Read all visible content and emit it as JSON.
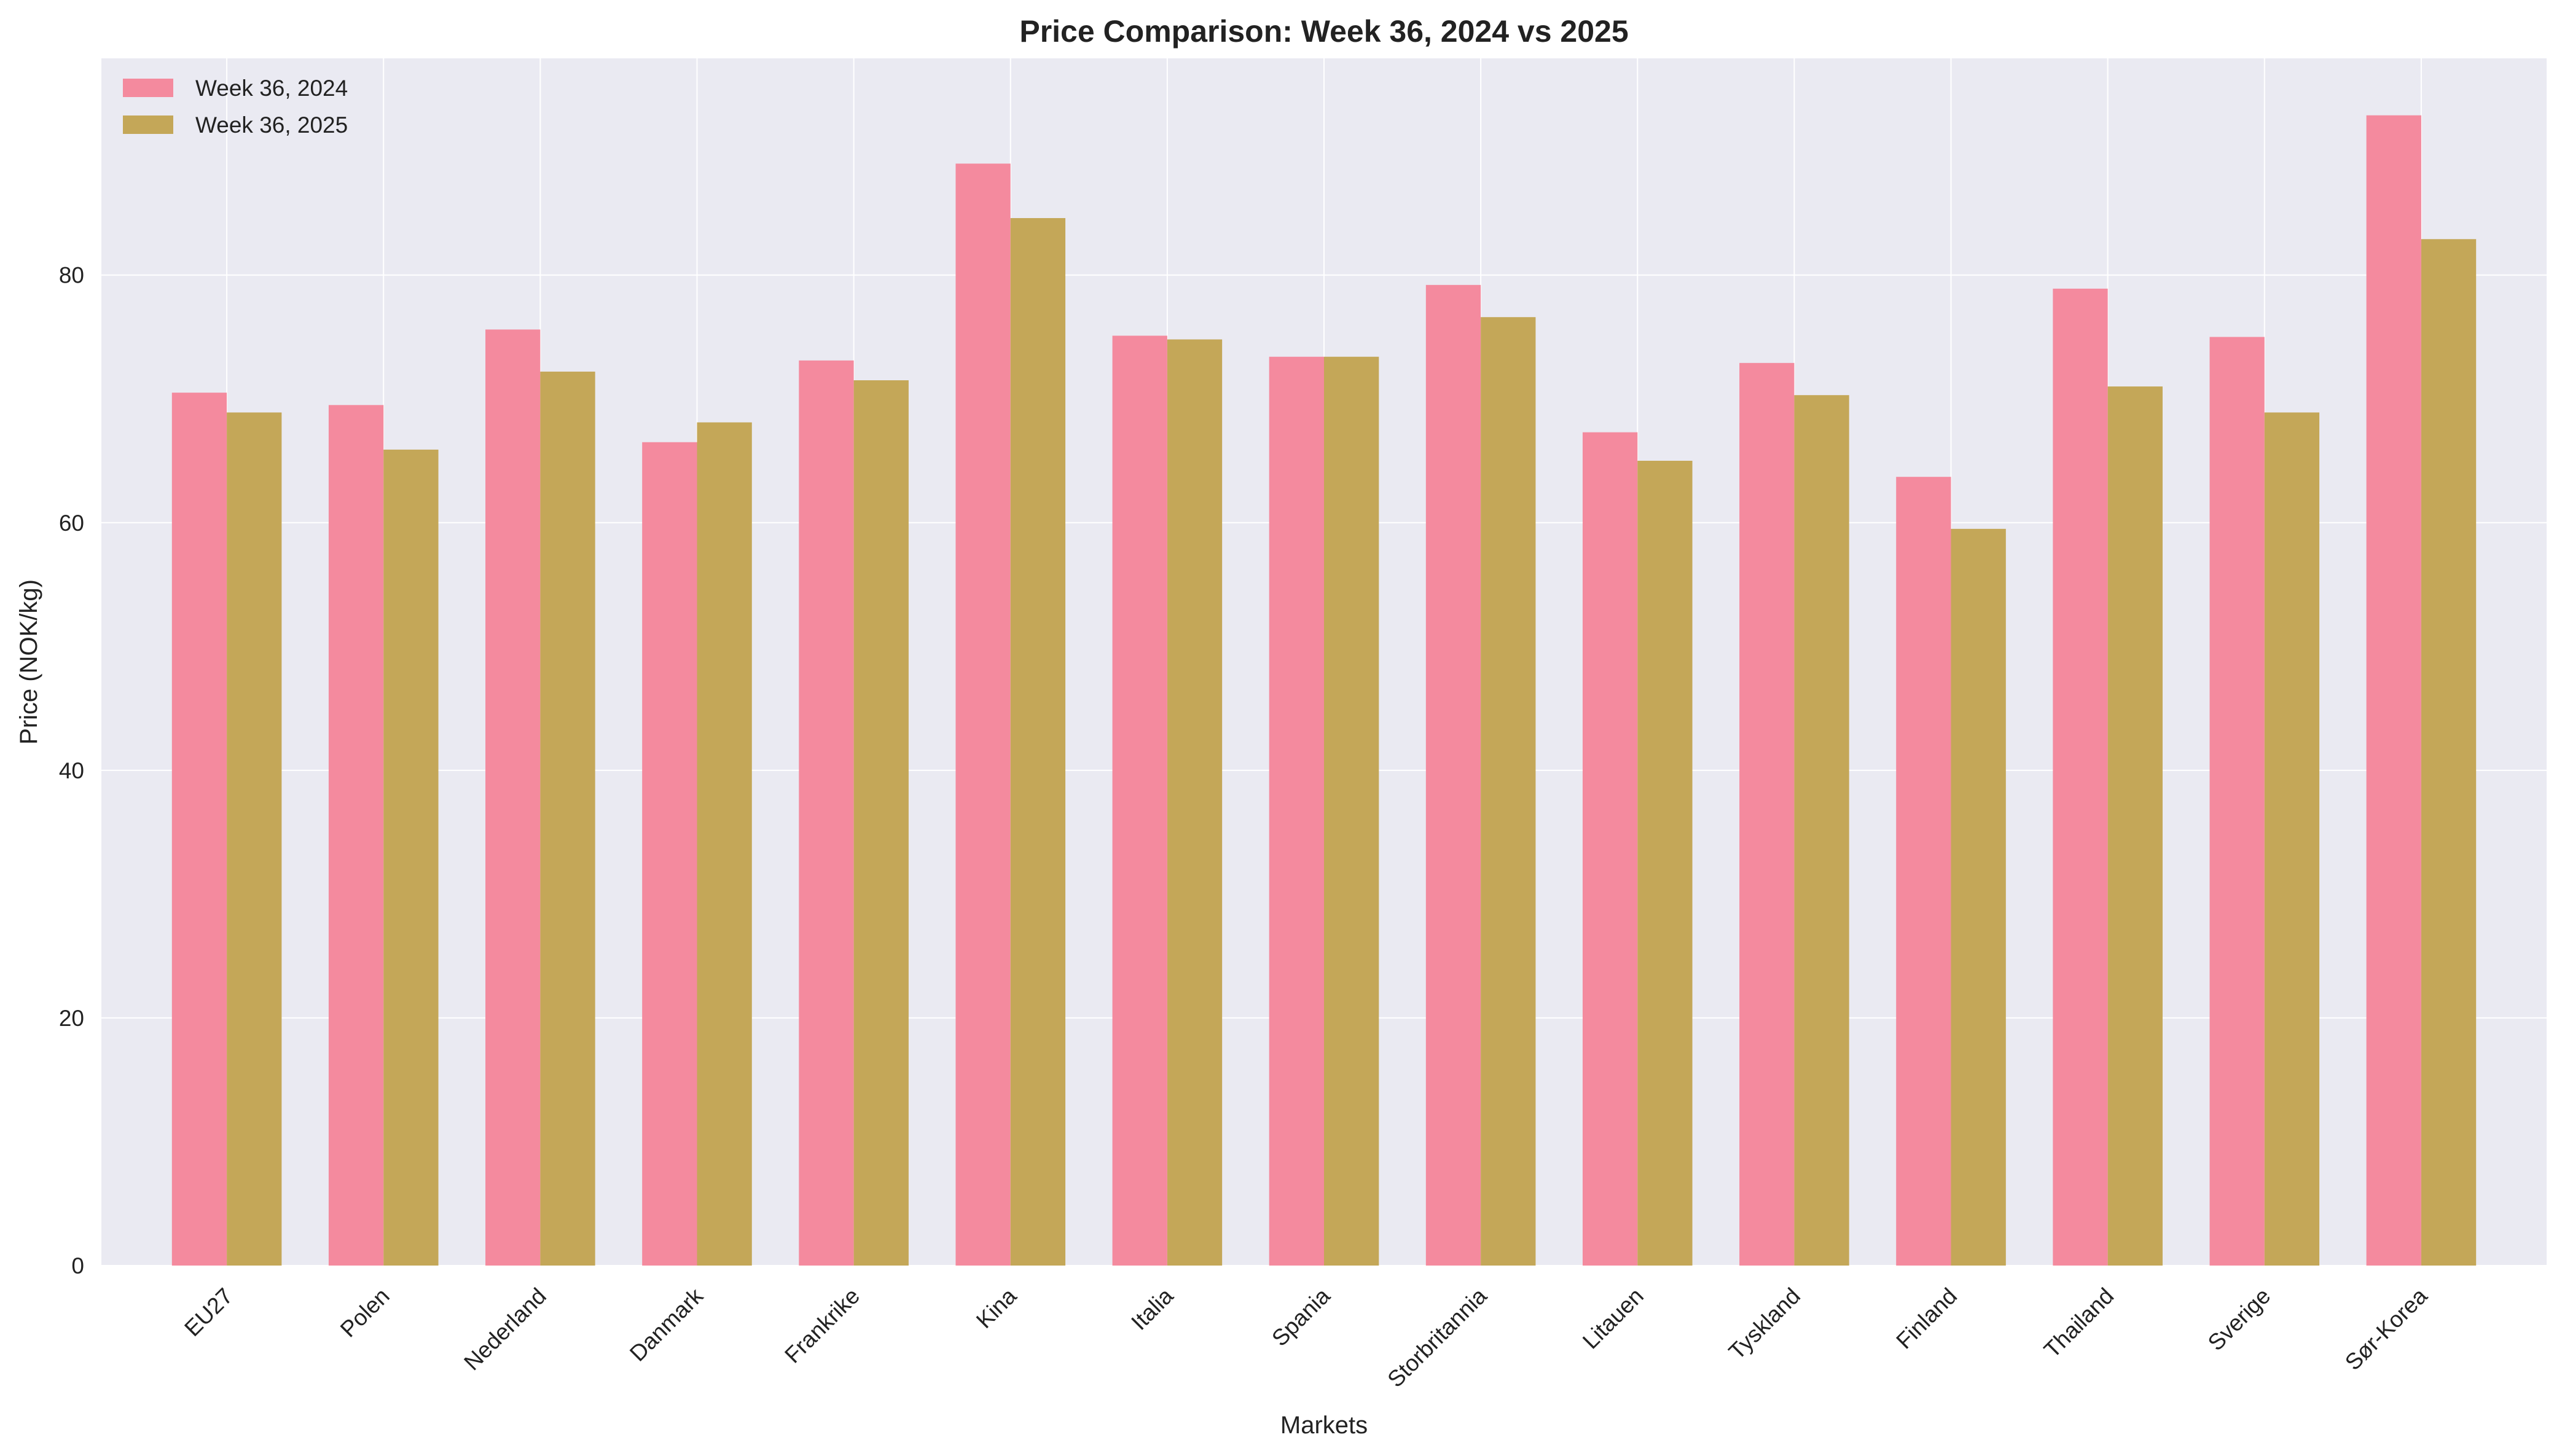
{
  "chart_data": {
    "type": "bar",
    "title": "Price Comparison: Week 36, 2024 vs 2025",
    "xlabel": "Markets",
    "ylabel": "Price (NOK/kg)",
    "ylim": [
      0,
      97.5
    ],
    "yticks": [
      0,
      20,
      40,
      60,
      80
    ],
    "grid": true,
    "legend_position": "top-left",
    "categories": [
      "EU27",
      "Polen",
      "Nederland",
      "Danmark",
      "Frankrike",
      "Kina",
      "Italia",
      "Spania",
      "Storbritannia",
      "Litauen",
      "Tyskland",
      "Finland",
      "Thailand",
      "Sverige",
      "Sør-Korea"
    ],
    "series": [
      {
        "name": "Week 36, 2024",
        "color": "#F48A9E",
        "values": [
          70.5,
          69.5,
          75.6,
          66.5,
          73.1,
          89.0,
          75.1,
          73.4,
          79.2,
          67.3,
          72.9,
          63.7,
          78.9,
          75.0,
          92.9
        ]
      },
      {
        "name": "Week 36, 2025",
        "color": "#C4A758",
        "values": [
          68.9,
          65.9,
          72.2,
          68.1,
          71.5,
          84.6,
          74.8,
          73.4,
          76.6,
          65.0,
          70.3,
          59.5,
          71.0,
          68.9,
          82.9
        ]
      }
    ]
  }
}
